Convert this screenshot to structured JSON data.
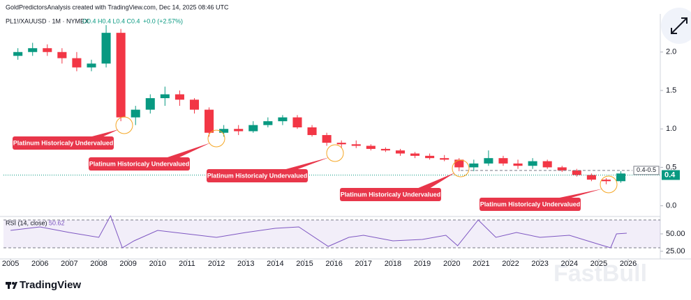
{
  "header": {
    "credit": "GoldPredictorsAnalysis created with TradingView.com, Dec 14, 2025 08:46 UTC"
  },
  "logo": "TradingView",
  "watermark": "FastBull",
  "chart_data": [
    {
      "type": "candlestick",
      "symbol": "PL1!/XAUUSD · 1M · NYMEX",
      "ohlc_text": "O0.4 H0.4 L0.4 C0.4",
      "change": "+0.0 (+2.57%)",
      "x": [
        2005.0,
        2005.5,
        2006.0,
        2006.5,
        2007.0,
        2007.5,
        2008.0,
        2008.5,
        2009.0,
        2009.5,
        2010.0,
        2010.5,
        2011.0,
        2011.5,
        2012.0,
        2012.5,
        2013.0,
        2013.5,
        2014.0,
        2014.5,
        2015.0,
        2015.5,
        2016.0,
        2016.5,
        2017.0,
        2017.5,
        2018.0,
        2018.5,
        2019.0,
        2019.5,
        2020.0,
        2020.5,
        2021.0,
        2021.5,
        2022.0,
        2022.5,
        2023.0,
        2023.5,
        2024.0,
        2024.5,
        2025.0,
        2025.5
      ],
      "open": [
        1.95,
        2.0,
        2.05,
        2.0,
        1.92,
        1.8,
        1.85,
        2.25,
        1.15,
        1.25,
        1.4,
        1.45,
        1.38,
        1.25,
        0.95,
        1.0,
        0.97,
        1.05,
        1.1,
        1.15,
        1.02,
        0.92,
        0.82,
        0.8,
        0.78,
        0.74,
        0.72,
        0.68,
        0.65,
        0.62,
        0.6,
        0.5,
        0.55,
        0.62,
        0.55,
        0.52,
        0.58,
        0.5,
        0.46,
        0.4,
        0.34,
        0.32
      ],
      "high": [
        2.05,
        2.12,
        2.1,
        2.05,
        2.0,
        1.9,
        2.35,
        2.3,
        1.3,
        1.45,
        1.55,
        1.5,
        1.4,
        1.28,
        1.05,
        1.05,
        1.1,
        1.15,
        1.18,
        1.18,
        1.05,
        0.95,
        0.85,
        0.85,
        0.8,
        0.76,
        0.74,
        0.7,
        0.68,
        0.66,
        0.62,
        0.6,
        0.72,
        0.65,
        0.6,
        0.62,
        0.6,
        0.52,
        0.48,
        0.42,
        0.36,
        0.45
      ],
      "low": [
        1.9,
        1.95,
        1.95,
        1.85,
        1.75,
        1.75,
        1.8,
        1.1,
        1.05,
        1.2,
        1.3,
        1.3,
        1.2,
        0.9,
        0.9,
        0.92,
        0.95,
        1.02,
        1.05,
        1.0,
        0.9,
        0.78,
        0.75,
        0.75,
        0.72,
        0.7,
        0.65,
        0.62,
        0.6,
        0.58,
        0.45,
        0.45,
        0.52,
        0.52,
        0.48,
        0.48,
        0.48,
        0.44,
        0.38,
        0.32,
        0.28,
        0.3
      ],
      "close": [
        2.0,
        2.05,
        2.0,
        1.92,
        1.8,
        1.85,
        2.25,
        1.15,
        1.25,
        1.4,
        1.45,
        1.38,
        1.25,
        0.95,
        1.0,
        0.97,
        1.05,
        1.1,
        1.15,
        1.02,
        0.92,
        0.82,
        0.8,
        0.78,
        0.74,
        0.72,
        0.68,
        0.65,
        0.62,
        0.6,
        0.5,
        0.55,
        0.62,
        0.55,
        0.52,
        0.58,
        0.5,
        0.46,
        0.4,
        0.34,
        0.32,
        0.42
      ],
      "up_color": "#089981",
      "down_color": "#f23645",
      "xlim": [
        2004.76,
        2027.09
      ],
      "ylim": [
        -0.13,
        2.36
      ],
      "yticks": [
        {
          "value": 0,
          "label": "0.0"
        },
        {
          "value": 0.5,
          "label": "0.5"
        },
        {
          "value": 1,
          "label": "1.0"
        },
        {
          "value": 1.5,
          "label": "1.5"
        },
        {
          "value": 2,
          "label": "2.0"
        }
      ],
      "current_price": 0.4,
      "current_price_label": "0.4",
      "range_level": 0.46,
      "range_label": "0.4-0.5",
      "annotations": [
        "Platinum Historicaly Undervalued",
        "Platinum Historicaly Undervalued",
        "Platinum Historicaly Undervalued",
        "Platinum Historicaly Undervalued",
        "Platinum Historicaly Undervalued"
      ]
    },
    {
      "type": "line",
      "title": "RSI (14, close)",
      "last_value": "50.62",
      "color": "#7e57c2",
      "x": [
        2005.0,
        2006.0,
        2007.0,
        2008.0,
        2008.4,
        2008.8,
        2009.2,
        2010.0,
        2011.0,
        2012.0,
        2013.0,
        2014.0,
        2014.8,
        2015.8,
        2016.5,
        2017.0,
        2018.0,
        2019.0,
        2019.8,
        2020.2,
        2020.9,
        2021.5,
        2022.2,
        2023.0,
        2024.0,
        2025.0,
        2025.4,
        2025.6,
        2025.95
      ],
      "values": [
        55,
        60,
        52,
        45,
        76,
        30,
        40,
        55,
        50,
        45,
        52,
        58,
        60,
        32,
        45,
        48,
        40,
        42,
        48,
        33,
        70,
        45,
        52,
        45,
        48,
        35,
        30,
        50,
        51
      ],
      "xlim": [
        2004.76,
        2027.09
      ],
      "ylim": [
        14,
        74
      ],
      "band": [
        30,
        70
      ],
      "yticks": [
        {
          "value": 50,
          "label": "50.00"
        },
        {
          "value": 25,
          "label": "25.00"
        }
      ],
      "xticks": [
        2005,
        2006,
        2007,
        2008,
        2009,
        2010,
        2011,
        2012,
        2013,
        2014,
        2015,
        2016,
        2017,
        2018,
        2019,
        2020,
        2021,
        2022,
        2023,
        2024,
        2025,
        2026
      ]
    }
  ]
}
